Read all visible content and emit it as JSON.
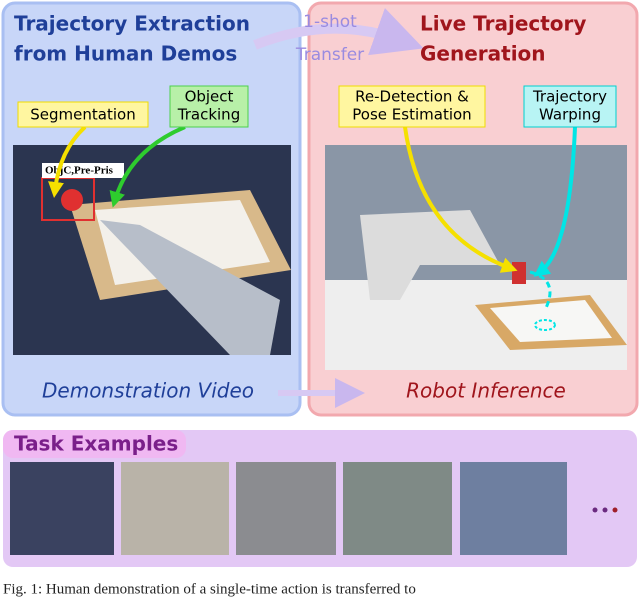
{
  "left_panel": {
    "title_lines": [
      "Trajectory Extraction",
      "from Human Demos"
    ],
    "segmentation": "Segmentation",
    "object_tracking": [
      "Object",
      "Tracking"
    ],
    "image_label": "ObjC,Pre-Pris",
    "footer": "Demonstration Video"
  },
  "transfer": [
    "1-shot",
    "Transfer"
  ],
  "right_panel": {
    "title_lines": [
      "Live Trajectory",
      "Generation"
    ],
    "redetection": [
      "Re-Detection &",
      "Pose Estimation"
    ],
    "warping": [
      "Trajectory",
      "Warping"
    ],
    "footer": "Robot Inference"
  },
  "task_examples": {
    "title": "Task Examples"
  },
  "caption": "Fig. 1: Human demonstration of a single-time action is transferred to"
}
